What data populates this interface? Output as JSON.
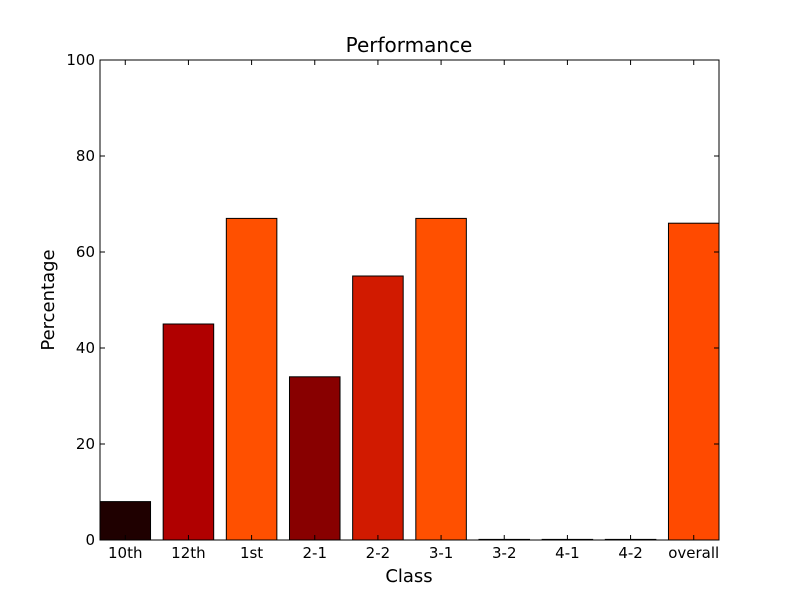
{
  "chart_data": {
    "type": "bar",
    "title": "Performance",
    "xlabel": "Class",
    "ylabel": "Percentage",
    "categories": [
      "10th",
      "12th",
      "1st",
      "2-1",
      "2-2",
      "3-1",
      "3-2",
      "4-1",
      "4-2",
      "overall"
    ],
    "values": [
      8,
      45,
      67,
      34,
      55,
      67,
      0,
      0,
      0,
      66
    ],
    "colors": [
      "#1f0000",
      "#b00000",
      "#ff5000",
      "#880000",
      "#d11a00",
      "#ff5000",
      "#ffffff",
      "#ffffff",
      "#ffffff",
      "#ff4a00"
    ],
    "ylim": [
      0,
      100
    ],
    "yticks": [
      0,
      20,
      40,
      60,
      80,
      100
    ],
    "grid": false,
    "legend": "none"
  }
}
